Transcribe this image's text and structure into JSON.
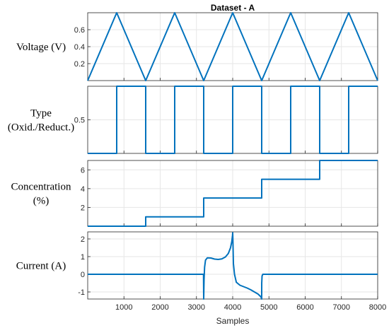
{
  "title": "Dataset - A",
  "xlabel": "Samples",
  "xlim": [
    0,
    8000
  ],
  "xticks": [
    "1000",
    "2000",
    "3000",
    "4000",
    "5000",
    "6000",
    "7000",
    "8000"
  ],
  "chart_data": [
    {
      "type": "line",
      "ylabel": "Voltage (V)",
      "ylim": [
        0,
        0.8
      ],
      "yticks": [
        "0.2",
        "0.4",
        "0.6"
      ],
      "grid": true,
      "series": [
        {
          "x": [
            0,
            800,
            1600,
            2400,
            3200,
            4000,
            4800,
            5600,
            6400,
            7200,
            8000
          ],
          "y": [
            0,
            0.8,
            0,
            0.8,
            0,
            0.8,
            0,
            0.8,
            0,
            0.8,
            0
          ]
        }
      ]
    },
    {
      "type": "line",
      "ylabel_lines": [
        "Type",
        "(Oxid./Reduct.)"
      ],
      "ylim": [
        0,
        1
      ],
      "yticks": [
        "0.5"
      ],
      "grid": true,
      "series": [
        {
          "x": [
            0,
            800,
            800,
            1600,
            1600,
            2400,
            2400,
            3200,
            3200,
            4000,
            4000,
            4800,
            4800,
            5600,
            5600,
            6400,
            6400,
            7200,
            7200,
            8000
          ],
          "y": [
            0,
            0,
            1,
            1,
            0,
            0,
            1,
            1,
            0,
            0,
            1,
            1,
            0,
            0,
            1,
            1,
            0,
            0,
            1,
            1
          ]
        }
      ]
    },
    {
      "type": "line",
      "ylabel_lines": [
        "Concentration",
        "(%)"
      ],
      "ylim": [
        0,
        7
      ],
      "yticks": [
        "2",
        "4",
        "6"
      ],
      "grid": true,
      "series": [
        {
          "x": [
            0,
            1600,
            1600,
            3200,
            3200,
            4800,
            4800,
            6400,
            6400,
            8000
          ],
          "y": [
            0,
            0,
            1,
            1,
            3,
            3,
            5,
            5,
            7,
            7
          ]
        }
      ]
    },
    {
      "type": "line",
      "ylabel": "Current (A)",
      "ylim": [
        -1.4,
        2.4
      ],
      "yticks": [
        "-1",
        "0",
        "1",
        "2"
      ],
      "grid": true,
      "series": [
        {
          "x": [
            0,
            3195,
            3200,
            3210,
            3225,
            3250,
            3300,
            3400,
            3500,
            3600,
            3700,
            3800,
            3880,
            3940,
            3975,
            3995,
            4000,
            4005,
            4020,
            4050,
            4100,
            4200,
            4300,
            4400,
            4500,
            4600,
            4700,
            4780,
            4800,
            4801,
            4810,
            4830,
            8000
          ],
          "y": [
            0,
            0,
            -1.4,
            -0.3,
            0.4,
            0.8,
            0.93,
            0.92,
            0.86,
            0.84,
            0.87,
            0.98,
            1.18,
            1.5,
            1.85,
            2.2,
            2.35,
            2.0,
            0.6,
            0,
            -0.45,
            -0.62,
            -0.7,
            -0.78,
            -0.88,
            -1.0,
            -1.12,
            -1.28,
            -1.4,
            -0.5,
            -0.1,
            0,
            0
          ]
        }
      ]
    }
  ],
  "colors": {
    "line": "#0072BD",
    "grid": "#e6e6e6",
    "axis": "#262626"
  }
}
